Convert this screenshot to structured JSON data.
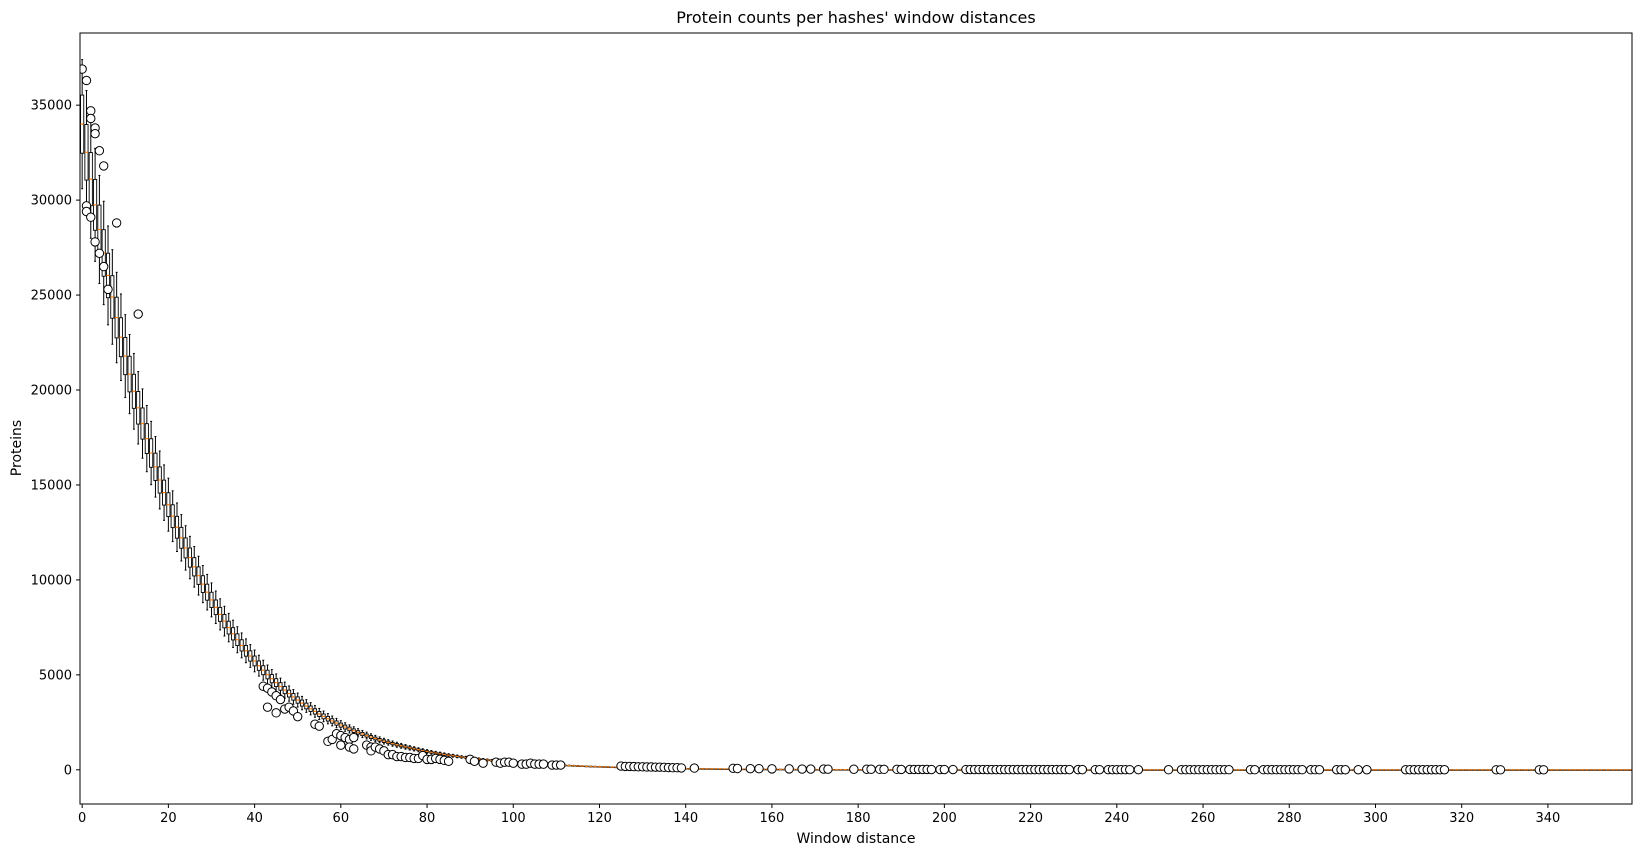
{
  "chart_data": {
    "type": "box",
    "title": "Protein counts per hashes' window distances",
    "xlabel": "Window distance",
    "ylabel": "Proteins",
    "xlim": [
      -0.5,
      359.5
    ],
    "ylim": [
      -1800,
      38800
    ],
    "x_ticks": [
      0,
      20,
      40,
      60,
      80,
      100,
      120,
      140,
      160,
      180,
      200,
      220,
      240,
      260,
      280,
      300,
      320,
      340
    ],
    "y_ticks": [
      0,
      5000,
      10000,
      15000,
      20000,
      25000,
      30000,
      35000
    ],
    "grid": false,
    "legend": "none",
    "colors": {
      "box": "#000000",
      "median": "#ff7f0e",
      "flier_edge": "#000000",
      "flier_face": "#ffffff"
    },
    "median_model": {
      "peak": 34000,
      "decay_per_window": 0.0445,
      "distance_range": [
        0,
        359
      ]
    },
    "box_relative_halfwidth": 0.045,
    "whisker_relative_halfwidth": 0.1,
    "fliers": [
      {
        "x": 0,
        "y": 36900
      },
      {
        "x": 1,
        "y": 36300
      },
      {
        "x": 1,
        "y": 29700
      },
      {
        "x": 1,
        "y": 29400
      },
      {
        "x": 2,
        "y": 34700
      },
      {
        "x": 2,
        "y": 34300
      },
      {
        "x": 2,
        "y": 29100
      },
      {
        "x": 3,
        "y": 33800
      },
      {
        "x": 3,
        "y": 33500
      },
      {
        "x": 3,
        "y": 27800
      },
      {
        "x": 4,
        "y": 32600
      },
      {
        "x": 4,
        "y": 27200
      },
      {
        "x": 5,
        "y": 31800
      },
      {
        "x": 5,
        "y": 26500
      },
      {
        "x": 6,
        "y": 25300
      },
      {
        "x": 8,
        "y": 28800
      },
      {
        "x": 13,
        "y": 24000
      },
      {
        "x": 42,
        "y": 4400
      },
      {
        "x": 43,
        "y": 4300
      },
      {
        "x": 43,
        "y": 3300
      },
      {
        "x": 44,
        "y": 4100
      },
      {
        "x": 45,
        "y": 3900
      },
      {
        "x": 45,
        "y": 3000
      },
      {
        "x": 46,
        "y": 3700
      },
      {
        "x": 47,
        "y": 3200
      },
      {
        "x": 48,
        "y": 3300
      },
      {
        "x": 49,
        "y": 3100
      },
      {
        "x": 50,
        "y": 2800
      },
      {
        "x": 54,
        "y": 2400
      },
      {
        "x": 55,
        "y": 2300
      },
      {
        "x": 57,
        "y": 1500
      },
      {
        "x": 58,
        "y": 1600
      },
      {
        "x": 59,
        "y": 1900
      },
      {
        "x": 60,
        "y": 1800
      },
      {
        "x": 60,
        "y": 1300
      },
      {
        "x": 61,
        "y": 1700
      },
      {
        "x": 62,
        "y": 1600
      },
      {
        "x": 62,
        "y": 1200
      },
      {
        "x": 63,
        "y": 1700
      },
      {
        "x": 63,
        "y": 1100
      },
      {
        "x": 66,
        "y": 1300
      },
      {
        "x": 67,
        "y": 1200
      },
      {
        "x": 67,
        "y": 1000
      },
      {
        "x": 68,
        "y": 1200
      },
      {
        "x": 69,
        "y": 1100
      },
      {
        "x": 70,
        "y": 1000
      },
      {
        "x": 71,
        "y": 800
      },
      {
        "x": 72,
        "y": 800
      },
      {
        "x": 73,
        "y": 700
      },
      {
        "x": 74,
        "y": 700
      },
      {
        "x": 75,
        "y": 650
      },
      {
        "x": 76,
        "y": 650
      },
      {
        "x": 77,
        "y": 600
      },
      {
        "x": 78,
        "y": 600
      },
      {
        "x": 79,
        "y": 750
      },
      {
        "x": 80,
        "y": 550
      },
      {
        "x": 81,
        "y": 550
      },
      {
        "x": 82,
        "y": 600
      },
      {
        "x": 83,
        "y": 550
      },
      {
        "x": 84,
        "y": 500
      },
      {
        "x": 85,
        "y": 450
      },
      {
        "x": 90,
        "y": 550
      },
      {
        "x": 91,
        "y": 450
      },
      {
        "x": 93,
        "y": 350
      },
      {
        "x": 96,
        "y": 400
      },
      {
        "x": 97,
        "y": 350
      },
      {
        "x": 98,
        "y": 400
      },
      {
        "x": 99,
        "y": 400
      },
      {
        "x": 100,
        "y": 350
      },
      {
        "x": 102,
        "y": 300
      },
      {
        "x": 103,
        "y": 300
      },
      {
        "x": 104,
        "y": 350
      },
      {
        "x": 105,
        "y": 300
      },
      {
        "x": 106,
        "y": 300
      },
      {
        "x": 107,
        "y": 300
      },
      {
        "x": 109,
        "y": 250
      },
      {
        "x": 110,
        "y": 250
      },
      {
        "x": 111,
        "y": 250
      },
      {
        "x": 125,
        "y": 200
      },
      {
        "x": 126,
        "y": 180
      },
      {
        "x": 127,
        "y": 180
      },
      {
        "x": 128,
        "y": 170
      },
      {
        "x": 129,
        "y": 160
      },
      {
        "x": 130,
        "y": 160
      },
      {
        "x": 131,
        "y": 150
      },
      {
        "x": 132,
        "y": 150
      },
      {
        "x": 133,
        "y": 140
      },
      {
        "x": 134,
        "y": 140
      },
      {
        "x": 135,
        "y": 130
      },
      {
        "x": 136,
        "y": 120
      },
      {
        "x": 137,
        "y": 110
      },
      {
        "x": 138,
        "y": 110
      },
      {
        "x": 139,
        "y": 100
      },
      {
        "x": 142,
        "y": 90
      },
      {
        "x": 151,
        "y": 80
      },
      {
        "x": 152,
        "y": 70
      },
      {
        "x": 155,
        "y": 60
      },
      {
        "x": 157,
        "y": 60
      },
      {
        "x": 160,
        "y": 50
      },
      {
        "x": 164,
        "y": 50
      },
      {
        "x": 167,
        "y": 40
      },
      {
        "x": 169,
        "y": 40
      },
      {
        "x": 172,
        "y": 40
      },
      {
        "x": 173,
        "y": 35
      },
      {
        "x": 179,
        "y": 30
      },
      {
        "x": 182,
        "y": 30
      },
      {
        "x": 183,
        "y": 30
      },
      {
        "x": 185,
        "y": 25
      },
      {
        "x": 186,
        "y": 25
      },
      {
        "x": 189,
        "y": 25
      },
      {
        "x": 190,
        "y": 20
      },
      {
        "x": 192,
        "y": 20
      },
      {
        "x": 193,
        "y": 20
      },
      {
        "x": 194,
        "y": 20
      },
      {
        "x": 195,
        "y": 20
      },
      {
        "x": 196,
        "y": 20
      },
      {
        "x": 197,
        "y": 15
      },
      {
        "x": 199,
        "y": 15
      },
      {
        "x": 200,
        "y": 15
      },
      {
        "x": 202,
        "y": 15
      },
      {
        "x": 205,
        "y": 15
      },
      {
        "x": 206,
        "y": 15
      },
      {
        "x": 207,
        "y": 15
      },
      {
        "x": 208,
        "y": 15
      },
      {
        "x": 209,
        "y": 15
      },
      {
        "x": 210,
        "y": 10
      },
      {
        "x": 211,
        "y": 10
      },
      {
        "x": 212,
        "y": 10
      },
      {
        "x": 213,
        "y": 10
      },
      {
        "x": 214,
        "y": 10
      },
      {
        "x": 215,
        "y": 10
      },
      {
        "x": 216,
        "y": 10
      },
      {
        "x": 217,
        "y": 10
      },
      {
        "x": 218,
        "y": 10
      },
      {
        "x": 219,
        "y": 10
      },
      {
        "x": 220,
        "y": 10
      },
      {
        "x": 221,
        "y": 10
      },
      {
        "x": 222,
        "y": 10
      },
      {
        "x": 223,
        "y": 10
      },
      {
        "x": 224,
        "y": 10
      },
      {
        "x": 225,
        "y": 10
      },
      {
        "x": 226,
        "y": 10
      },
      {
        "x": 227,
        "y": 10
      },
      {
        "x": 228,
        "y": 10
      },
      {
        "x": 229,
        "y": 10
      },
      {
        "x": 231,
        "y": 10
      },
      {
        "x": 232,
        "y": 10
      },
      {
        "x": 235,
        "y": 8
      },
      {
        "x": 236,
        "y": 8
      },
      {
        "x": 238,
        "y": 8
      },
      {
        "x": 239,
        "y": 8
      },
      {
        "x": 240,
        "y": 8
      },
      {
        "x": 241,
        "y": 8
      },
      {
        "x": 242,
        "y": 8
      },
      {
        "x": 243,
        "y": 8
      },
      {
        "x": 245,
        "y": 8
      },
      {
        "x": 252,
        "y": 5
      },
      {
        "x": 255,
        "y": 5
      },
      {
        "x": 256,
        "y": 5
      },
      {
        "x": 257,
        "y": 5
      },
      {
        "x": 258,
        "y": 5
      },
      {
        "x": 259,
        "y": 5
      },
      {
        "x": 260,
        "y": 5
      },
      {
        "x": 261,
        "y": 5
      },
      {
        "x": 262,
        "y": 5
      },
      {
        "x": 263,
        "y": 5
      },
      {
        "x": 264,
        "y": 5
      },
      {
        "x": 265,
        "y": 5
      },
      {
        "x": 266,
        "y": 5
      },
      {
        "x": 271,
        "y": 5
      },
      {
        "x": 272,
        "y": 5
      },
      {
        "x": 274,
        "y": 5
      },
      {
        "x": 275,
        "y": 5
      },
      {
        "x": 276,
        "y": 5
      },
      {
        "x": 277,
        "y": 5
      },
      {
        "x": 278,
        "y": 5
      },
      {
        "x": 279,
        "y": 5
      },
      {
        "x": 280,
        "y": 5
      },
      {
        "x": 281,
        "y": 5
      },
      {
        "x": 282,
        "y": 5
      },
      {
        "x": 283,
        "y": 5
      },
      {
        "x": 285,
        "y": 5
      },
      {
        "x": 286,
        "y": 5
      },
      {
        "x": 287,
        "y": 5
      },
      {
        "x": 291,
        "y": 3
      },
      {
        "x": 292,
        "y": 3
      },
      {
        "x": 293,
        "y": 3
      },
      {
        "x": 296,
        "y": 3
      },
      {
        "x": 298,
        "y": 3
      },
      {
        "x": 307,
        "y": 3
      },
      {
        "x": 308,
        "y": 3
      },
      {
        "x": 309,
        "y": 3
      },
      {
        "x": 310,
        "y": 3
      },
      {
        "x": 311,
        "y": 3
      },
      {
        "x": 312,
        "y": 3
      },
      {
        "x": 313,
        "y": 3
      },
      {
        "x": 314,
        "y": 3
      },
      {
        "x": 315,
        "y": 3
      },
      {
        "x": 316,
        "y": 3
      },
      {
        "x": 328,
        "y": 2
      },
      {
        "x": 329,
        "y": 2
      },
      {
        "x": 338,
        "y": 2
      },
      {
        "x": 339,
        "y": 2
      }
    ]
  }
}
